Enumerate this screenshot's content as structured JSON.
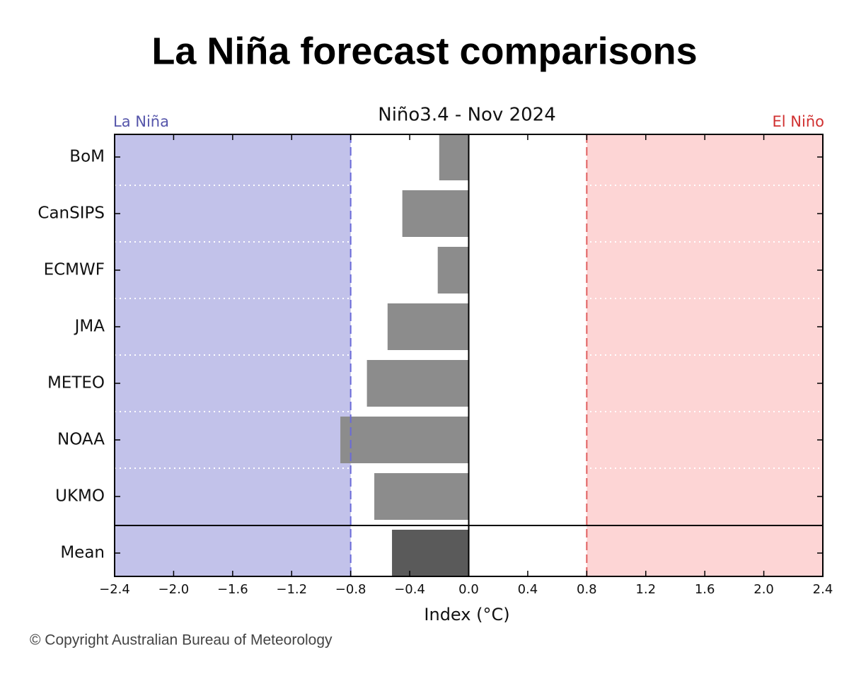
{
  "chart_data": {
    "type": "barh",
    "title": "La Niña forecast comparisons",
    "subtitle": "Niño3.4 - Nov 2024",
    "la_nina_label": "La Niña",
    "el_nino_label": "El Niño",
    "x_label": "Index (°C)",
    "copyright": "© Copyright Australian Bureau of Meteorology",
    "categories": [
      "BoM",
      "CanSIPS",
      "ECMWF",
      "JMA",
      "METEO",
      "NOAA",
      "UKMO"
    ],
    "values": [
      -0.2,
      -0.45,
      -0.21,
      -0.55,
      -0.69,
      -0.87,
      -0.64
    ],
    "color": "#8c8c8c",
    "mean": {
      "label": "Mean",
      "value": -0.52,
      "color": "#5a5a5a"
    },
    "la_nina_threshold": -0.8,
    "el_nino_threshold": 0.8,
    "la_nina_color": "#c2c2ea",
    "el_nino_color": "#fdd5d5",
    "xlim": [
      -2.4,
      2.4
    ],
    "xticks": [
      {
        "value": -2.4,
        "label": "−2.4"
      },
      {
        "value": -2,
        "label": "−2.0"
      },
      {
        "value": -1.6,
        "label": "−1.6"
      },
      {
        "value": -1.2,
        "label": "−1.2"
      },
      {
        "value": -0.8,
        "label": "−0.8"
      },
      {
        "value": -0.4,
        "label": "−0.4"
      },
      {
        "value": 0,
        "label": "0.0"
      },
      0.4,
      0.8,
      1.2,
      1.6,
      {
        "value": 2,
        "label": "2.0"
      },
      2.4
    ]
  }
}
